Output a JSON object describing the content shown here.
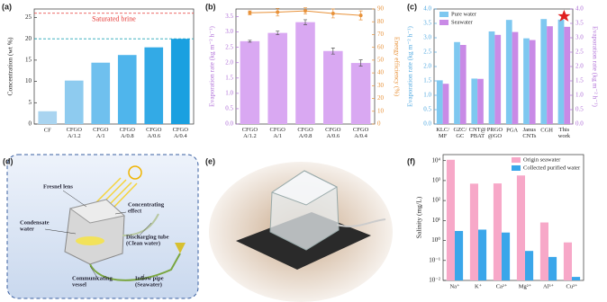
{
  "chart_data": [
    {
      "panel_label": "(a)",
      "type": "bar",
      "ylabel": "Concentration (wt %)",
      "categories": [
        "CF",
        "CFGO\nA/1.2",
        "CFGO\nA/1",
        "CFGO\nA/0.8",
        "CFGO\nA/0.6",
        "CFGO\nA/0.4"
      ],
      "series": [
        {
          "values": [
            3,
            10.2,
            14.4,
            16.2,
            18,
            20
          ],
          "colors": [
            "#a9d4f0",
            "#8ecbef",
            "#6fc0ee",
            "#4fb5ec",
            "#33aae6",
            "#1aa0e0"
          ]
        }
      ],
      "ylim": [
        0,
        27
      ],
      "yticks": [
        0,
        5,
        10,
        15,
        20,
        25
      ],
      "reference_lines": [
        {
          "value": 26,
          "label": "Saturated brine",
          "color": "#e53935"
        },
        {
          "value": 20,
          "color": "#26a6b8"
        }
      ]
    },
    {
      "panel_label": "(b)",
      "type": "bar",
      "ylabel": "Evaporation rate (kg m⁻² h⁻¹)",
      "y2label": "Energy efficiency (%)",
      "ycolor": "#b06fd8",
      "y2color": "#e8923a",
      "categories": [
        "CFGO\nA/1.2",
        "CFGO\nA/1",
        "CFGO\nA/0.8",
        "CFGO\nA/0.6",
        "CFGO\nA/0.4"
      ],
      "series": [
        {
          "values": [
            2.7,
            2.97,
            3.32,
            2.38,
            1.99
          ],
          "errors": [
            0.03,
            0.06,
            0.08,
            0.1,
            0.1
          ],
          "color": "#d9a8f2"
        },
        {
          "type": "line",
          "axis": "y2",
          "values": [
            87,
            87.5,
            88.5,
            86.5,
            85
          ],
          "errors": [
            1.5,
            3,
            2.5,
            3.5,
            3.5
          ],
          "color": "#e8923a"
        }
      ],
      "ylim": [
        0,
        3.75
      ],
      "yticks": [
        {
          "value": 0,
          "label": "0.0"
        },
        {
          "value": 0.5,
          "label": "0.5"
        },
        {
          "value": 1,
          "label": "1.0"
        },
        {
          "value": 1.5,
          "label": "1.5"
        },
        {
          "value": 2,
          "label": "2.0"
        },
        {
          "value": 2.5,
          "label": "2.5"
        },
        {
          "value": 3,
          "label": "3.0"
        },
        {
          "value": 3.5,
          "label": "3.5"
        }
      ],
      "y2lim": [
        0,
        90
      ],
      "y2ticks": [
        0,
        10,
        20,
        30,
        40,
        50,
        60,
        70,
        80,
        90
      ]
    },
    {
      "panel_label": "(c)",
      "type": "bar",
      "ylabel": "Evaporation rate (kg m⁻² h⁻¹)",
      "y2label": "Evaporation rate (kg m⁻² h⁻¹)",
      "ycolor": "#4fa8e0",
      "y2color": "#b06fd8",
      "legend": "upper-left",
      "categories": [
        "KLC/\nMF",
        "GZC/\nGC",
        "CNT@\nPBAT",
        "PRGO\n@GO",
        "PGA",
        "Janus\nCNTs",
        "CGH",
        "This\nwork"
      ],
      "series": [
        {
          "name": "Pure water",
          "values": [
            1.52,
            2.85,
            1.58,
            3.22,
            3.62,
            2.98,
            3.65,
            3.63
          ],
          "color": "#7ec8f0"
        },
        {
          "name": "Seawater",
          "values": [
            1.4,
            2.75,
            1.57,
            3.1,
            3.2,
            2.92,
            3.4,
            3.38
          ],
          "color": "#c98ae6"
        }
      ],
      "ylim": [
        0,
        4
      ],
      "yticks": [
        {
          "value": 0,
          "label": "0.0"
        },
        {
          "value": 0.5,
          "label": "0.5"
        },
        {
          "value": 1,
          "label": "1.0"
        },
        {
          "value": 1.5,
          "label": "1.5"
        },
        {
          "value": 2,
          "label": "2.0"
        },
        {
          "value": 2.5,
          "label": "2.5"
        },
        {
          "value": 3,
          "label": "3.0"
        },
        {
          "value": 3.5,
          "label": "3.5"
        },
        {
          "value": 4,
          "label": "4.0"
        }
      ],
      "y2lim": [
        0,
        4
      ],
      "y2ticks": [
        {
          "value": 0,
          "label": "0.0"
        },
        {
          "value": 0.5,
          "label": "0.5"
        },
        {
          "value": 1,
          "label": "1.0"
        },
        {
          "value": 1.5,
          "label": "1.5"
        },
        {
          "value": 2,
          "label": "2.0"
        },
        {
          "value": 2.5,
          "label": "2.5"
        },
        {
          "value": 3,
          "label": "3.0"
        },
        {
          "value": 3.5,
          "label": "3.5"
        },
        {
          "value": 4,
          "label": "4.0"
        }
      ]
    },
    {
      "panel_label": "(f)",
      "type": "bar",
      "log": true,
      "ylabel": "Salinity (mg/L)",
      "legend": "upper-right",
      "categories": [
        "Na⁺",
        "K⁺",
        "Ca²⁺",
        "Mg²⁺",
        "Al³⁺",
        "Cu²⁺"
      ],
      "series": [
        {
          "name": "Origin seawater",
          "values": [
            11000,
            700,
            720,
            1800,
            8,
            0.8
          ],
          "color": "#f7a8c8"
        },
        {
          "name": "Collected purified water",
          "values": [
            3,
            3.5,
            2.5,
            0.3,
            0.15,
            0.015
          ],
          "color": "#3aa6ea"
        }
      ],
      "ylim": [
        0.01,
        20000
      ],
      "yticks": [
        {
          "value": 0.01,
          "label": "10⁻²"
        },
        {
          "value": 0.1,
          "label": "10⁻¹"
        },
        {
          "value": 1,
          "label": "10⁰"
        },
        {
          "value": 10,
          "label": "10¹"
        },
        {
          "value": 100,
          "label": "10²"
        },
        {
          "value": 1000,
          "label": "10³"
        },
        {
          "value": 10000,
          "label": "10⁴"
        }
      ]
    }
  ],
  "diagram": {
    "panel_label": "(d)",
    "labels": [
      "Fresnel lens",
      "Condensate\nwater",
      "Concentrating\neffect",
      "Discharging tube\n(Clean water)",
      "Communicating\nvessel",
      "Inflow pipe\n(Seawater)"
    ]
  },
  "photo": {
    "panel_label": "(e)"
  }
}
